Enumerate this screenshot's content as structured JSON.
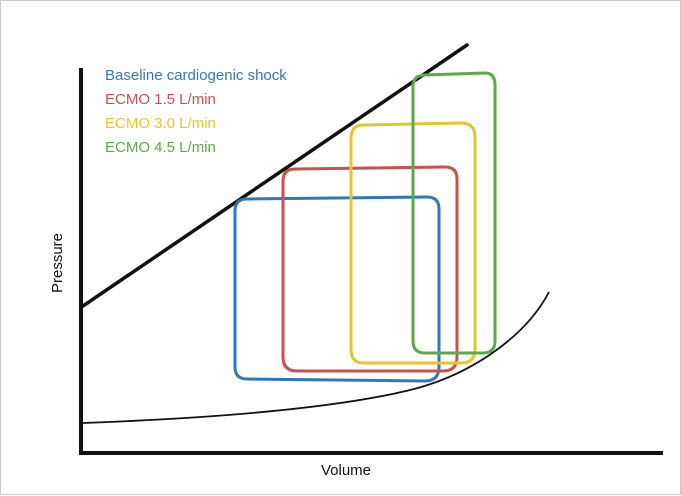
{
  "axes": {
    "x_label": "Volume",
    "y_label": "Pressure"
  },
  "legend": [
    {
      "label": "Baseline cardiogenic shock",
      "color": "#2f78bd"
    },
    {
      "label": "ECMO 1.5 L/min",
      "color": "#c8504f"
    },
    {
      "label": "ECMO 3.0 L/min",
      "color": "#e6c52a"
    },
    {
      "label": "ECMO 4.5 L/min",
      "color": "#5aaa45"
    }
  ],
  "curves": {
    "espvr_color": "#111111",
    "edpvr_color": "#111111"
  }
}
